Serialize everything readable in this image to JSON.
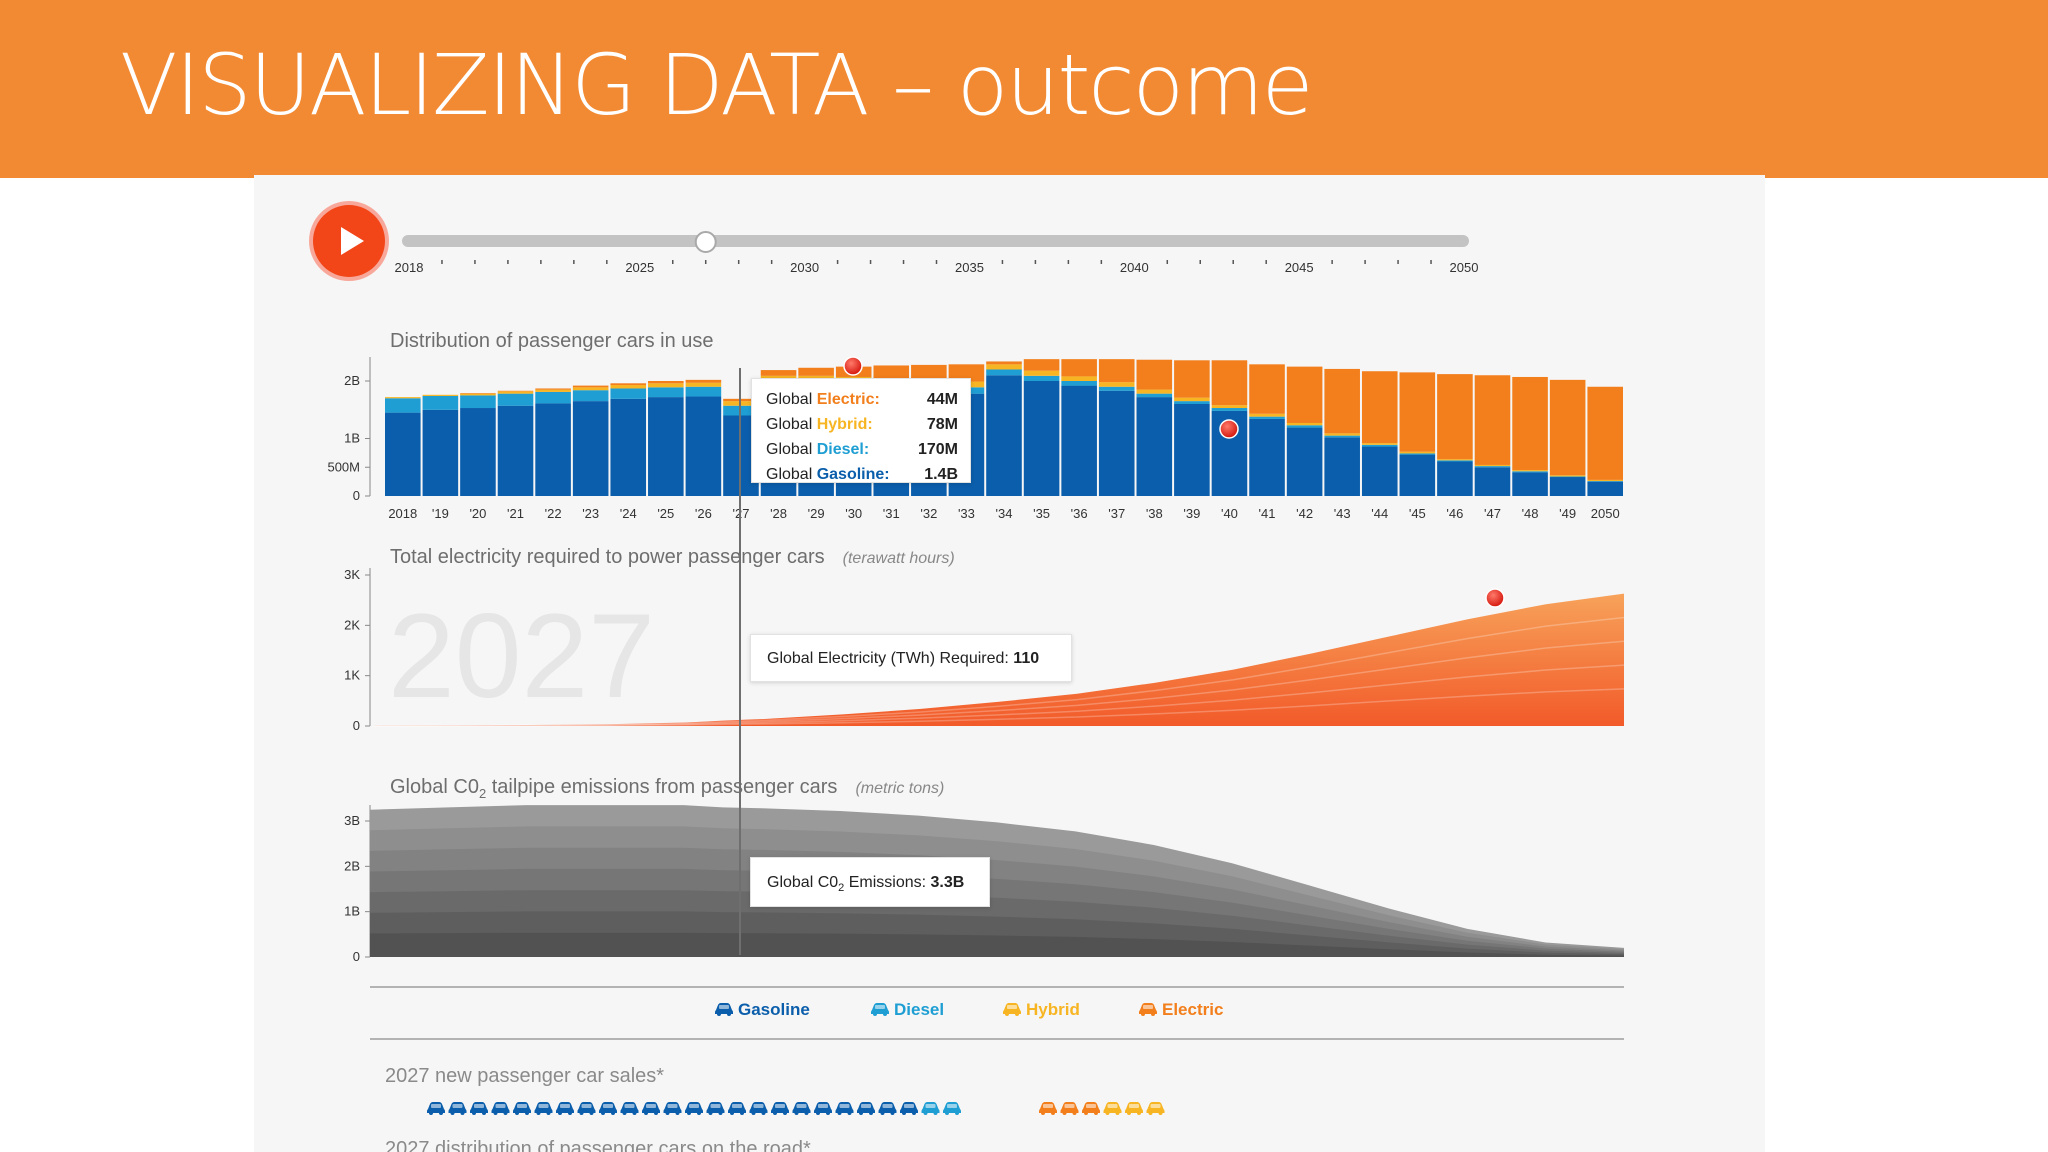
{
  "title": "VISUALIZING DATA – outcome",
  "colors": {
    "header": "#f28a33",
    "gasoline": "#0b5eab",
    "diesel": "#1e9ed3",
    "hybrid": "#f7b523",
    "electric": "#f27f1c",
    "play": "#f24518"
  },
  "timeline": {
    "selected_year": 2027,
    "range": [
      2018,
      2050
    ],
    "labels": [
      "2018",
      "2025",
      "2030",
      "2035",
      "2040",
      "2045",
      "2050"
    ],
    "play_icon": "play-icon"
  },
  "charts": {
    "cars": {
      "title": "Distribution of passenger cars in use",
      "y_ticks": [
        "2B",
        "1B",
        "500M",
        "0"
      ],
      "x_ticks": [
        "2018",
        "'19",
        "'20",
        "'21",
        "'22",
        "'23",
        "'24",
        "'25",
        "'26",
        "'27",
        "'28",
        "'29",
        "'30",
        "'31",
        "'32",
        "'33",
        "'34",
        "'35",
        "'36",
        "'37",
        "'38",
        "'39",
        "'40",
        "'41",
        "'42",
        "'43",
        "'44",
        "'45",
        "'46",
        "'47",
        "'48",
        "'49",
        "2050"
      ]
    },
    "electricity": {
      "title": "Total electricity required to power passenger cars",
      "unit": "(terawatt hours)",
      "y_ticks": [
        "3K",
        "2K",
        "1K",
        "0"
      ],
      "watermark": "2027"
    },
    "co2": {
      "title_pre": "Global C0",
      "title_sub": "2",
      "title_post": " tailpipe emissions from passenger cars",
      "unit": "(metric tons)",
      "y_ticks": [
        "3B",
        "2B",
        "1B",
        "0"
      ]
    }
  },
  "tooltips": {
    "cars": [
      {
        "prefix": "Global ",
        "type": "Electric:",
        "value": "44M"
      },
      {
        "prefix": "Global ",
        "type": "Hybrid:",
        "value": "78M"
      },
      {
        "prefix": "Global ",
        "type": "Diesel:",
        "value": "170M"
      },
      {
        "prefix": "Global ",
        "type": "Gasoline:",
        "value": "1.4B"
      }
    ],
    "electricity": {
      "label": "Global Electricity (TWh) Required: ",
      "value": "110"
    },
    "co2": {
      "label_pre": "Global C0",
      "label_sub": "2",
      "label_post": " Emissions: ",
      "value": "3.3B"
    }
  },
  "legend": [
    {
      "label": "Gasoline",
      "icon": "car-icon"
    },
    {
      "label": "Diesel",
      "icon": "car-icon"
    },
    {
      "label": "Hybrid",
      "icon": "car-icon"
    },
    {
      "label": "Electric",
      "icon": "car-icon"
    }
  ],
  "sales": {
    "title": "2027 new passenger car sales*",
    "icons": {
      "gasoline": 23,
      "diesel": 2,
      "electric": 3,
      "hybrid": 3
    }
  },
  "distribution_title": "2027 distribution of passenger cars on the road*",
  "chart_data": [
    {
      "type": "bar",
      "title": "Distribution of passenger cars in use",
      "categories": [
        "2018",
        "'19",
        "'20",
        "'21",
        "'22",
        "'23",
        "'24",
        "'25",
        "'26",
        "'27",
        "'28",
        "'29",
        "'30",
        "'31",
        "'32",
        "'33",
        "'34",
        "'35",
        "'36",
        "'37",
        "'38",
        "'39",
        "'40",
        "'41",
        "'42",
        "'43",
        "'44",
        "'45",
        "'46",
        "'47",
        "'48",
        "'49",
        "2050"
      ],
      "stacked": true,
      "ylim": [
        0,
        2.3
      ],
      "series": [
        {
          "name": "Gasoline",
          "values": [
            1.45,
            1.5,
            1.53,
            1.57,
            1.61,
            1.65,
            1.69,
            1.72,
            1.73,
            1.4,
            1.84,
            1.85,
            1.83,
            1.82,
            1.8,
            1.78,
            2.1,
            2.0,
            1.92,
            1.83,
            1.72,
            1.6,
            1.48,
            1.34,
            1.19,
            1.02,
            0.86,
            0.72,
            0.6,
            0.5,
            0.41,
            0.33,
            0.25
          ]
        },
        {
          "name": "Diesel",
          "values": [
            0.25,
            0.24,
            0.22,
            0.21,
            0.2,
            0.19,
            0.18,
            0.17,
            0.17,
            0.17,
            0.16,
            0.15,
            0.14,
            0.13,
            0.12,
            0.11,
            0.1,
            0.09,
            0.08,
            0.07,
            0.06,
            0.05,
            0.05,
            0.04,
            0.04,
            0.03,
            0.03,
            0.02,
            0.02,
            0.02,
            0.02,
            0.01,
            0.01
          ]
        },
        {
          "name": "Hybrid",
          "values": [
            0.02,
            0.02,
            0.03,
            0.04,
            0.04,
            0.05,
            0.06,
            0.07,
            0.07,
            0.08,
            0.09,
            0.09,
            0.1,
            0.1,
            0.1,
            0.1,
            0.09,
            0.09,
            0.08,
            0.08,
            0.07,
            0.06,
            0.05,
            0.05,
            0.04,
            0.04,
            0.03,
            0.03,
            0.02,
            0.02,
            0.02,
            0.02,
            0.02
          ]
        },
        {
          "name": "Electric",
          "values": [
            0.0,
            0.0,
            0.01,
            0.01,
            0.02,
            0.03,
            0.03,
            0.04,
            0.05,
            0.04,
            0.1,
            0.14,
            0.18,
            0.22,
            0.26,
            0.3,
            0.05,
            0.2,
            0.3,
            0.4,
            0.52,
            0.65,
            0.78,
            0.86,
            0.98,
            1.12,
            1.25,
            1.38,
            1.48,
            1.56,
            1.62,
            1.66,
            1.62
          ]
        }
      ]
    },
    {
      "type": "area",
      "title": "Total electricity required to power passenger cars",
      "ylabel": "(terawatt hours)",
      "x": [
        2018,
        2020,
        2022,
        2024,
        2026,
        2027,
        2028,
        2030,
        2032,
        2034,
        2036,
        2038,
        2040,
        2042,
        2044,
        2046,
        2048,
        2050
      ],
      "values": [
        5,
        10,
        20,
        35,
        70,
        110,
        140,
        230,
        340,
        480,
        640,
        860,
        1120,
        1440,
        1780,
        2120,
        2420,
        2630
      ],
      "ylim": [
        0,
        3000
      ]
    },
    {
      "type": "area",
      "title": "Global C02 tailpipe emissions from passenger cars",
      "ylabel": "(metric tons)",
      "x": [
        2018,
        2020,
        2022,
        2024,
        2026,
        2027,
        2028,
        2030,
        2032,
        2034,
        2036,
        2038,
        2040,
        2042,
        2044,
        2046,
        2048,
        2050
      ],
      "values": [
        3.25,
        3.3,
        3.35,
        3.35,
        3.35,
        3.3,
        3.28,
        3.22,
        3.12,
        2.97,
        2.77,
        2.47,
        2.07,
        1.57,
        1.07,
        0.62,
        0.32,
        0.2
      ],
      "ylim": [
        0,
        3.5
      ]
    }
  ]
}
